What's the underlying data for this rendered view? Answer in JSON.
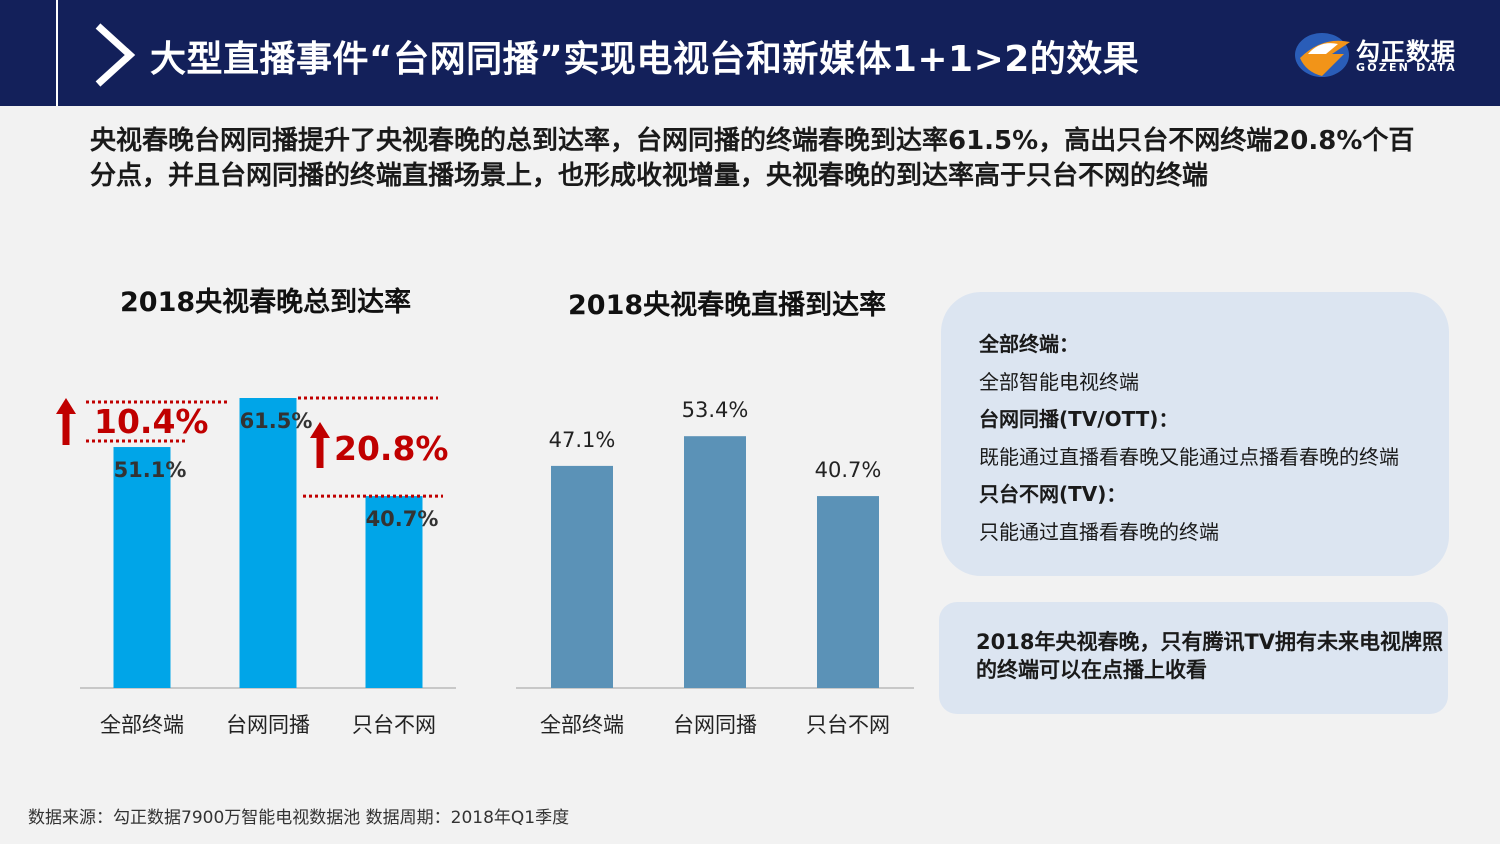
{
  "header": {
    "title": "大型直播事件“台网同播”实现电视台和新媒体1+1>2的效果",
    "logo_cn": "勾正数据",
    "logo_en": "GOZEN DATA"
  },
  "summary": "央视春晚台网同播提升了央视春晚的总到达率，台网同播的终端春晚到达率61.5%，高出只台不网终端20.8%个百分点，并且台网同播的终端直播场景上，也形成收视增量，央视春晚的到达率高于只台不网的终端",
  "chart_data": [
    {
      "type": "bar",
      "title": "2018央视春晚总到达率",
      "categories": [
        "全部终端",
        "台网同播",
        "只台不网"
      ],
      "values": [
        51.1,
        61.5,
        40.7
      ],
      "value_labels": [
        "51.1%",
        "61.5%",
        "40.7%"
      ],
      "color": "#00a5e8",
      "annotations": [
        {
          "text": "10.4%",
          "from": 51.1,
          "to": 61.5,
          "color": "#c00000"
        },
        {
          "text": "20.8%",
          "from": 40.7,
          "to": 61.5,
          "color": "#c00000"
        }
      ],
      "ylim": [
        0,
        61.5
      ]
    },
    {
      "type": "bar",
      "title": "2018央视春晚直播到达率",
      "categories": [
        "全部终端",
        "台网同播",
        "只台不网"
      ],
      "values": [
        47.1,
        53.4,
        40.7
      ],
      "value_labels": [
        "47.1%",
        "53.4%",
        "40.7%"
      ],
      "color": "#5b92b7",
      "ylim": [
        0,
        61.5
      ]
    }
  ],
  "legend_panel": {
    "items": [
      {
        "term": "全部终端：",
        "desc": "全部智能电视终端"
      },
      {
        "term": "台网同播(TV/OTT)：",
        "desc": "既能通过直播看春晚又能通过点播看春晚的终端"
      },
      {
        "term": "只台不网(TV)：",
        "desc": "只能通过直播看春晚的终端"
      }
    ]
  },
  "note_panel": {
    "text": "2018年央视春晚，只有腾讯TV拥有未来电视牌照的终端可以在点播上收看"
  },
  "footer": "数据来源：勾正数据7900万智能电视数据池  数据周期：2018年Q1季度"
}
